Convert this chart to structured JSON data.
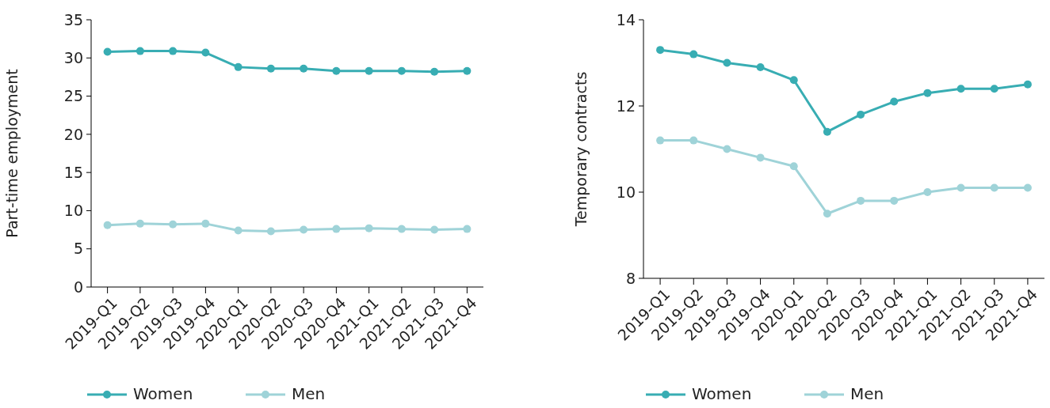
{
  "chart_data": [
    {
      "type": "line",
      "ylabel": "Part-time employment",
      "categories": [
        "2019-Q1",
        "2019-Q2",
        "2019-Q3",
        "2019-Q4",
        "2020-Q1",
        "2020-Q2",
        "2020-Q3",
        "2020-Q4",
        "2021-Q1",
        "2021-Q2",
        "2021-Q3",
        "2021-Q4"
      ],
      "ylim": [
        0,
        35
      ],
      "yticks": [
        0,
        5,
        10,
        15,
        20,
        25,
        30,
        35
      ],
      "legend": "bottom",
      "marker": "circle",
      "grid": false,
      "series": [
        {
          "name": "Women",
          "color": "#38adb3",
          "values": [
            30.8,
            30.9,
            30.9,
            30.7,
            28.8,
            28.6,
            28.6,
            28.3,
            28.3,
            28.3,
            28.2,
            28.3
          ]
        },
        {
          "name": "Men",
          "color": "#9fd3d8",
          "values": [
            8.1,
            8.3,
            8.2,
            8.3,
            7.4,
            7.3,
            7.5,
            7.6,
            7.7,
            7.6,
            7.5,
            7.6
          ]
        }
      ]
    },
    {
      "type": "line",
      "ylabel": "Temporary contracts",
      "categories": [
        "2019-Q1",
        "2019-Q2",
        "2019-Q3",
        "2019-Q4",
        "2020-Q1",
        "2020-Q2",
        "2020-Q3",
        "2020-Q4",
        "2021-Q1",
        "2021-Q2",
        "2021-Q3",
        "2021-Q4"
      ],
      "ylim": [
        8,
        14
      ],
      "yticks": [
        8,
        10,
        12,
        14
      ],
      "legend": "bottom",
      "marker": "circle",
      "grid": false,
      "series": [
        {
          "name": "Women",
          "color": "#38adb3",
          "values": [
            13.3,
            13.2,
            13.0,
            12.9,
            12.6,
            11.4,
            11.8,
            12.1,
            12.3,
            12.4,
            12.4,
            12.5
          ]
        },
        {
          "name": "Men",
          "color": "#9fd3d8",
          "values": [
            11.2,
            11.2,
            11.0,
            10.8,
            10.6,
            9.5,
            9.8,
            9.8,
            10.0,
            10.1,
            10.1,
            10.1
          ]
        }
      ]
    }
  ]
}
